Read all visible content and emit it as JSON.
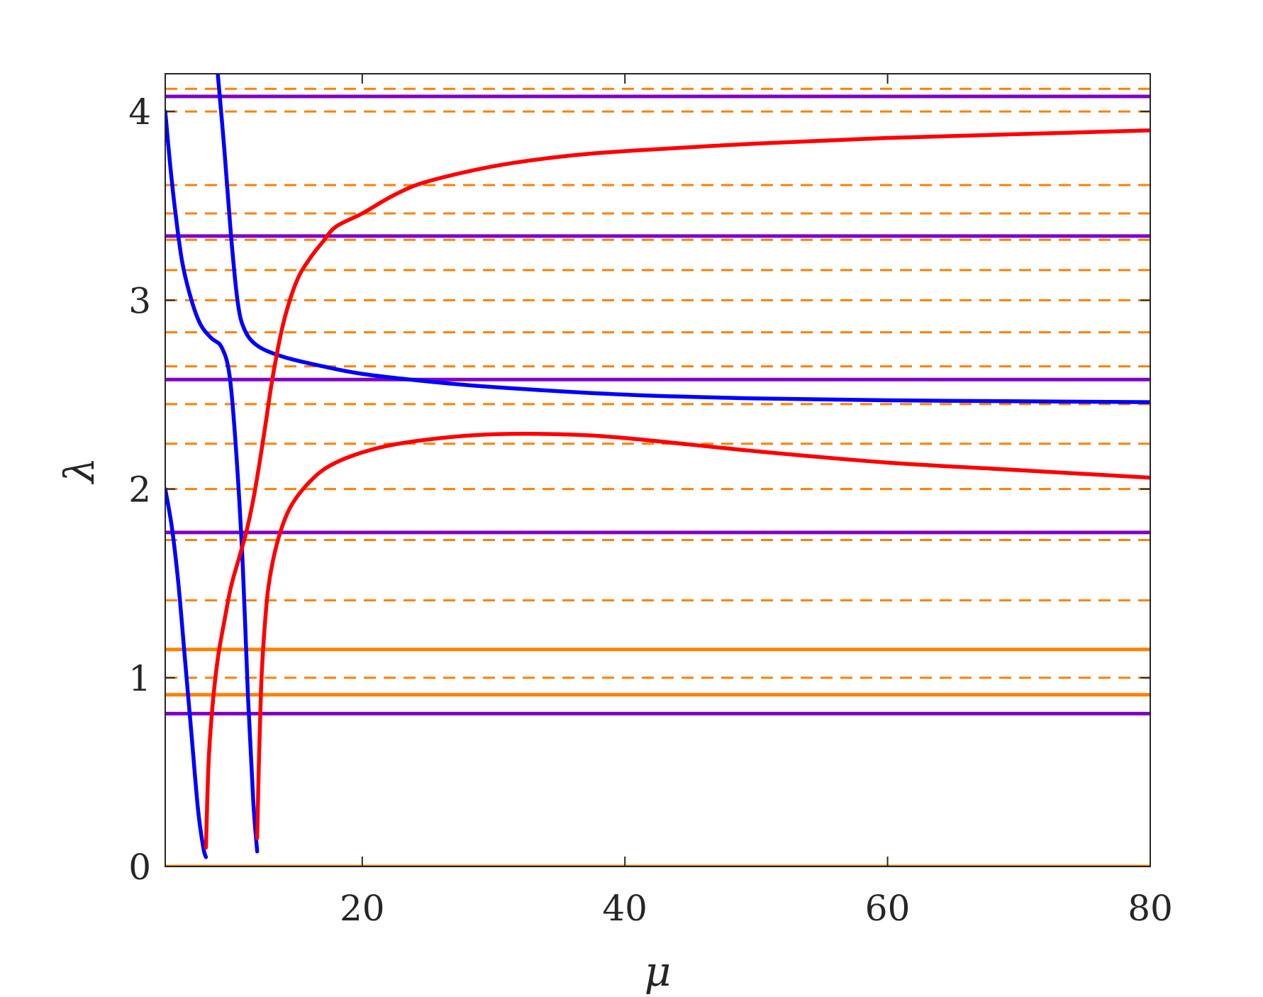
{
  "chart_data": {
    "type": "line",
    "title": "",
    "xlabel": "μ",
    "ylabel": "λ",
    "xlim": [
      5,
      80
    ],
    "ylim": [
      0,
      4.2
    ],
    "xticks": [
      20,
      40,
      60,
      80
    ],
    "yticks": [
      0,
      1,
      2,
      3,
      4
    ],
    "grid": false,
    "legend": "none",
    "colors": {
      "blue": "#0000ff",
      "red": "#ff0000",
      "purple": "#8000c8",
      "orange": "#ff8000",
      "axis": "#262626"
    },
    "reference_lines": {
      "purple_solid": [
        0.81,
        1.77,
        2.58,
        3.34,
        4.08
      ],
      "orange_solid": [
        0.0,
        0.91,
        1.15
      ],
      "orange_dashed": [
        1.0,
        1.41,
        1.73,
        2.0,
        2.24,
        2.45,
        2.65,
        2.83,
        3.0,
        3.16,
        3.32,
        3.46,
        3.61,
        4.0,
        4.12
      ]
    },
    "series": [
      {
        "color": "blue",
        "x": [
          5.0,
          5.5,
          6.0,
          6.5,
          7.0,
          7.5,
          7.9,
          8.1
        ],
        "y": [
          2.0,
          1.8,
          1.5,
          1.1,
          0.7,
          0.3,
          0.1,
          0.05
        ]
      },
      {
        "color": "blue",
        "x": [
          5.0,
          5.4,
          5.8,
          6.3,
          7.0,
          7.7,
          8.5,
          9.3,
          9.9,
          10.4,
          10.9,
          11.3,
          11.7,
          12.0
        ],
        "y": [
          4.0,
          3.7,
          3.45,
          3.2,
          3.0,
          2.87,
          2.8,
          2.75,
          2.6,
          2.2,
          1.6,
          0.9,
          0.35,
          0.08
        ]
      },
      {
        "color": "blue",
        "x": [
          9.0,
          9.5,
          10.0,
          10.5,
          11.0,
          12.0,
          14.0,
          17.0,
          20.0,
          25.0,
          30.0,
          40.0,
          50.0,
          60.0,
          70.0,
          80.0
        ],
        "y": [
          4.2,
          3.8,
          3.35,
          3.0,
          2.85,
          2.76,
          2.7,
          2.65,
          2.61,
          2.57,
          2.54,
          2.5,
          2.48,
          2.47,
          2.465,
          2.46
        ]
      },
      {
        "color": "red",
        "x": [
          8.1,
          8.3,
          8.6,
          9.0,
          9.5,
          10.0,
          10.6,
          11.2,
          11.8,
          12.5,
          13.2,
          14.0,
          15.0,
          16.0,
          17.0,
          18.0,
          20.0,
          22.5,
          25.0,
          30.0,
          35.0,
          40.0,
          50.0,
          60.0,
          70.0,
          80.0
        ],
        "y": [
          0.1,
          0.55,
          0.85,
          1.1,
          1.3,
          1.48,
          1.63,
          1.78,
          1.98,
          2.28,
          2.6,
          2.88,
          3.1,
          3.22,
          3.31,
          3.39,
          3.46,
          3.56,
          3.63,
          3.71,
          3.76,
          3.79,
          3.83,
          3.86,
          3.88,
          3.9
        ]
      },
      {
        "color": "red",
        "x": [
          12.0,
          12.15,
          12.3,
          12.5,
          12.8,
          13.2,
          13.8,
          14.5,
          15.5,
          17.0,
          19.0,
          22.0,
          26.0,
          30.0,
          35.0,
          40.0,
          50.0,
          60.0,
          70.0,
          80.0
        ],
        "y": [
          0.15,
          0.6,
          0.95,
          1.2,
          1.45,
          1.62,
          1.78,
          1.9,
          2.0,
          2.1,
          2.17,
          2.23,
          2.27,
          2.29,
          2.29,
          2.27,
          2.2,
          2.14,
          2.1,
          2.06
        ]
      }
    ]
  }
}
